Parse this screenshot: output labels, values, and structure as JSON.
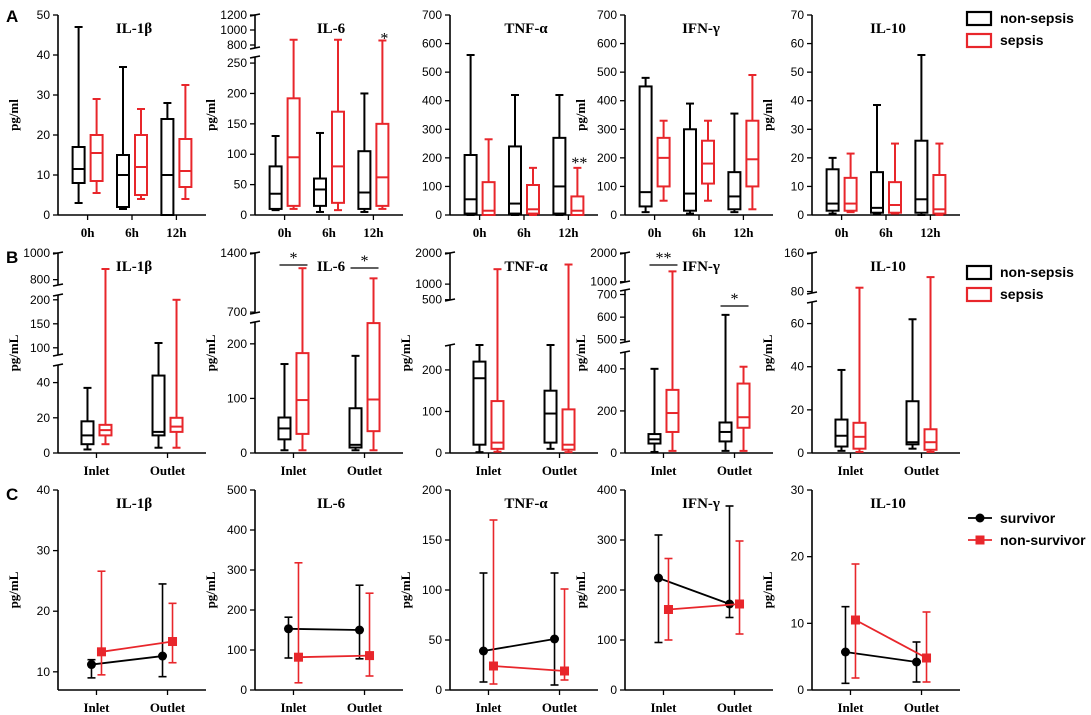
{
  "colors": {
    "nonsepsis": "#000000",
    "sepsis": "#e8262b",
    "survivor": "#000000",
    "nonsurvivor": "#e8262b"
  },
  "chart_data": [
    {
      "panel": "A",
      "type": "box",
      "title": "IL-1β",
      "ylabel": "pg/ml",
      "categories": [
        "0h",
        "6h",
        "12h"
      ],
      "yticks": [
        0,
        10,
        20,
        30,
        40,
        50
      ],
      "ylim": [
        0,
        50
      ],
      "series": [
        {
          "name": "non-sepsis",
          "boxes": [
            [
              3,
              8,
              11.5,
              17,
              47
            ],
            [
              1.5,
              2,
              10,
              15,
              37
            ],
            [
              0,
              0,
              10,
              24,
              28
            ]
          ]
        },
        {
          "name": "sepsis",
          "boxes": [
            [
              5.5,
              8.5,
              15.5,
              20,
              29
            ],
            [
              4,
              5,
              12,
              20,
              26.5
            ],
            [
              4,
              7,
              11,
              19,
              32.5
            ]
          ]
        }
      ],
      "annotations": []
    },
    {
      "panel": "A",
      "type": "box",
      "title": "IL-6",
      "ylabel": "pg/ml",
      "categories": [
        "0h",
        "6h",
        "12h"
      ],
      "yticks": [
        0,
        50,
        100,
        150,
        200,
        250,
        800,
        1000,
        1200
      ],
      "ylim": [
        0,
        1200
      ],
      "axis_break": {
        "low": [
          0,
          260
        ],
        "high": [
          760,
          1200
        ]
      },
      "series": [
        {
          "name": "non-sepsis",
          "boxes": [
            [
              8,
              10,
              35,
              80,
              130
            ],
            [
              5,
              15,
              42,
              60,
              135
            ],
            [
              5,
              10,
              37,
              105,
              200
            ]
          ]
        },
        {
          "name": "sepsis",
          "boxes": [
            [
              10,
              15,
              95,
              192,
              870
            ],
            [
              8,
              20,
              80,
              170,
              870
            ],
            [
              10,
              15,
              62,
              150,
              860
            ]
          ]
        }
      ],
      "annotations": [
        {
          "text": "*",
          "category": "12h"
        }
      ]
    },
    {
      "panel": "A",
      "type": "box",
      "title": "TNF-α",
      "ylabel": "",
      "categories": [
        "0h",
        "6h",
        "12h"
      ],
      "yticks": [
        0,
        100,
        200,
        300,
        400,
        500,
        600,
        700
      ],
      "ylim": [
        0,
        700
      ],
      "series": [
        {
          "name": "non-sepsis",
          "boxes": [
            [
              0,
              5,
              55,
              210,
              560
            ],
            [
              0,
              5,
              40,
              240,
              420
            ],
            [
              0,
              5,
              100,
              270,
              420
            ]
          ]
        },
        {
          "name": "sepsis",
          "boxes": [
            [
              0,
              0,
              15,
              115,
              265
            ],
            [
              0,
              5,
              20,
              105,
              165
            ],
            [
              0,
              0,
              15,
              65,
              165
            ]
          ]
        }
      ],
      "annotations": [
        {
          "text": "**",
          "category": "12h"
        }
      ]
    },
    {
      "panel": "A",
      "type": "box",
      "title": "IFN-γ",
      "ylabel": "pg/ml",
      "categories": [
        "0h",
        "6h",
        "12h"
      ],
      "yticks": [
        0,
        100,
        200,
        300,
        400,
        500,
        600,
        700
      ],
      "ylim": [
        0,
        700
      ],
      "series": [
        {
          "name": "non-sepsis",
          "boxes": [
            [
              10,
              30,
              80,
              450,
              480
            ],
            [
              5,
              15,
              75,
              300,
              390
            ],
            [
              10,
              20,
              65,
              150,
              355
            ]
          ]
        },
        {
          "name": "sepsis",
          "boxes": [
            [
              50,
              100,
              200,
              270,
              330
            ],
            [
              50,
              110,
              180,
              260,
              330
            ],
            [
              20,
              100,
              195,
              330,
              490
            ]
          ]
        }
      ],
      "annotations": []
    },
    {
      "panel": "A",
      "type": "box",
      "title": "IL-10",
      "ylabel": "pg/ml",
      "categories": [
        "0h",
        "6h",
        "12h"
      ],
      "yticks": [
        0,
        10,
        20,
        30,
        40,
        50,
        60,
        70
      ],
      "ylim": [
        0,
        70
      ],
      "series": [
        {
          "name": "non-sepsis",
          "boxes": [
            [
              0.5,
              1.5,
              4,
              16,
              20
            ],
            [
              0.5,
              0.8,
              2.5,
              15,
              38.5
            ],
            [
              0,
              0.8,
              5.5,
              26,
              56
            ]
          ]
        },
        {
          "name": "sepsis",
          "boxes": [
            [
              1,
              1.5,
              4,
              13,
              21.5
            ],
            [
              0.5,
              0.8,
              3.5,
              11.5,
              25
            ],
            [
              0,
              0.5,
              2,
              14,
              25
            ]
          ]
        }
      ],
      "annotations": []
    },
    {
      "panel": "B",
      "type": "box",
      "title": "IL-1β",
      "ylabel": "pg/mL",
      "categories": [
        "Inlet",
        "Outlet"
      ],
      "yticks": [
        0,
        20,
        40,
        100,
        150,
        200,
        800,
        1000
      ],
      "ylim": [
        0,
        1000
      ],
      "axis_break": {
        "low": [
          0,
          50
        ],
        "mid": [
          85,
          210
        ],
        "high": [
          760,
          1000
        ]
      },
      "series": [
        {
          "name": "non-sepsis",
          "boxes": [
            [
              2,
              5,
              10,
              18,
              37
            ],
            [
              3,
              10,
              12,
              44,
              110
            ]
          ]
        },
        {
          "name": "sepsis",
          "boxes": [
            [
              5,
              10,
              13,
              16,
              880
            ],
            [
              3,
              12,
              15,
              20,
              200
            ]
          ]
        }
      ],
      "annotations": []
    },
    {
      "panel": "B",
      "type": "box",
      "title": "IL-6",
      "ylabel": "pg/mL",
      "categories": [
        "Inlet",
        "Outlet"
      ],
      "yticks": [
        0,
        100,
        200,
        700,
        1400
      ],
      "ylim": [
        0,
        1400
      ],
      "axis_break": {
        "low": [
          0,
          240
        ],
        "high": [
          690,
          1400
        ]
      },
      "series": [
        {
          "name": "non-sepsis",
          "boxes": [
            [
              5,
              25,
              45,
              65,
              163
            ],
            [
              5,
              10,
              15,
              82,
              178
            ]
          ]
        },
        {
          "name": "sepsis",
          "boxes": [
            [
              5,
              35,
              97,
              183,
              1220
            ],
            [
              5,
              40,
              98,
              238,
              1100
            ]
          ]
        }
      ],
      "annotations": [
        {
          "text": "*",
          "category": "Inlet"
        },
        {
          "text": "*",
          "category": "Outlet"
        }
      ]
    },
    {
      "panel": "B",
      "type": "box",
      "title": "TNF-α",
      "ylabel": "pg/mL",
      "categories": [
        "Inlet",
        "Outlet"
      ],
      "yticks": [
        0,
        100,
        200,
        500,
        1000,
        2000
      ],
      "ylim": [
        0,
        2000
      ],
      "axis_break": {
        "low": [
          0,
          260
        ],
        "high": [
          490,
          2000
        ]
      },
      "series": [
        {
          "name": "non-sepsis",
          "boxes": [
            [
              2,
              20,
              180,
              220,
              420
            ],
            [
              10,
              25,
              95,
              150,
              280
            ]
          ]
        },
        {
          "name": "sepsis",
          "boxes": [
            [
              3,
              10,
              25,
              125,
              1480
            ],
            [
              2,
              8,
              20,
              105,
              1630
            ]
          ]
        }
      ],
      "annotations": []
    },
    {
      "panel": "B",
      "type": "box",
      "title": "IFN-γ",
      "ylabel": "pg/mL",
      "categories": [
        "Inlet",
        "Outlet"
      ],
      "yticks": [
        0,
        200,
        400,
        500,
        600,
        700,
        1000,
        2000
      ],
      "ylim": [
        0,
        2000
      ],
      "axis_break": {
        "low": [
          0,
          480
        ],
        "mid": [
          490,
          720
        ],
        "high": [
          990,
          2000
        ]
      },
      "series": [
        {
          "name": "non-sepsis",
          "boxes": [
            [
              5,
              45,
              65,
              90,
              400
            ],
            [
              10,
              55,
              100,
              145,
              610
            ]
          ]
        },
        {
          "name": "sepsis",
          "boxes": [
            [
              10,
              100,
              190,
              300,
              1360
            ],
            [
              10,
              120,
              170,
              330,
              410
            ]
          ]
        }
      ],
      "annotations": [
        {
          "text": "**",
          "category": "Inlet"
        },
        {
          "text": "*",
          "category": "Outlet"
        }
      ]
    },
    {
      "panel": "B",
      "type": "box",
      "title": "IL-10",
      "ylabel": "pg/mL",
      "categories": [
        "Inlet",
        "Outlet"
      ],
      "yticks": [
        0,
        20,
        40,
        60,
        80,
        160
      ],
      "ylim": [
        0,
        160
      ],
      "axis_break": {
        "low": [
          0,
          70
        ],
        "high": [
          77,
          160
        ]
      },
      "series": [
        {
          "name": "non-sepsis",
          "boxes": [
            [
              1,
              3,
              8,
              15.5,
              38.5
            ],
            [
              2,
              4,
              5,
              24,
              62
            ]
          ]
        },
        {
          "name": "sepsis",
          "boxes": [
            [
              0.5,
              2,
              7.5,
              14,
              88
            ],
            [
              0.5,
              1.5,
              5,
              11,
              110
            ]
          ]
        }
      ],
      "annotations": []
    },
    {
      "panel": "C",
      "type": "line",
      "title": "IL-1β",
      "ylabel": "pg/mL",
      "categories": [
        "Inlet",
        "Outlet"
      ],
      "yticks": [
        10,
        20,
        30,
        40
      ],
      "ylim": [
        7,
        40
      ],
      "series": [
        {
          "name": "survivor",
          "values": [
            11.2,
            12.6
          ],
          "lower": [
            9,
            9.2
          ],
          "upper": [
            12,
            24.5
          ]
        },
        {
          "name": "non-survivor",
          "values": [
            13.3,
            15
          ],
          "lower": [
            9.5,
            11.5
          ],
          "upper": [
            26.6,
            21.3
          ]
        }
      ]
    },
    {
      "panel": "C",
      "type": "line",
      "title": "IL-6",
      "ylabel": "pg/mL",
      "categories": [
        "Inlet",
        "Outlet"
      ],
      "yticks": [
        0,
        100,
        200,
        300,
        400,
        500
      ],
      "ylim": [
        0,
        500
      ],
      "series": [
        {
          "name": "survivor",
          "values": [
            153,
            150
          ],
          "lower": [
            80,
            78
          ],
          "upper": [
            182,
            262
          ]
        },
        {
          "name": "non-survivor",
          "values": [
            82,
            86
          ],
          "lower": [
            18,
            35
          ],
          "upper": [
            318,
            242
          ]
        }
      ]
    },
    {
      "panel": "C",
      "type": "line",
      "title": "TNF-α",
      "ylabel": "pg/mL",
      "categories": [
        "Inlet",
        "Outlet"
      ],
      "yticks": [
        0,
        50,
        100,
        150,
        200
      ],
      "ylim": [
        0,
        200
      ],
      "series": [
        {
          "name": "survivor",
          "values": [
            39,
            51
          ],
          "lower": [
            8,
            5
          ],
          "upper": [
            117,
            117
          ]
        },
        {
          "name": "non-survivor",
          "values": [
            24,
            19
          ],
          "lower": [
            6,
            10
          ],
          "upper": [
            170,
            101
          ]
        }
      ]
    },
    {
      "panel": "C",
      "type": "line",
      "title": "IFN-γ",
      "ylabel": "pg/mL",
      "categories": [
        "Inlet",
        "Outlet"
      ],
      "yticks": [
        0,
        100,
        200,
        300,
        400
      ],
      "ylim": [
        0,
        400
      ],
      "series": [
        {
          "name": "survivor",
          "values": [
            224,
            172
          ],
          "lower": [
            95,
            145
          ],
          "upper": [
            310,
            368
          ]
        },
        {
          "name": "non-survivor",
          "values": [
            161,
            172
          ],
          "lower": [
            100,
            112
          ],
          "upper": [
            263,
            298
          ]
        }
      ]
    },
    {
      "panel": "C",
      "type": "line",
      "title": "IL-10",
      "ylabel": "pg/mL",
      "categories": [
        "Inlet",
        "Outlet"
      ],
      "yticks": [
        0,
        10,
        20,
        30
      ],
      "ylim": [
        0,
        30
      ],
      "series": [
        {
          "name": "survivor",
          "values": [
            5.7,
            4.2
          ],
          "lower": [
            1,
            1.2
          ],
          "upper": [
            12.5,
            7.2
          ]
        },
        {
          "name": "non-survivor",
          "values": [
            10.5,
            4.8
          ],
          "lower": [
            1.8,
            1.2
          ],
          "upper": [
            18.9,
            11.7
          ]
        }
      ]
    }
  ],
  "legends": {
    "A": [
      "non-sepsis",
      "sepsis"
    ],
    "B": [
      "non-sepsis",
      "sepsis"
    ],
    "C": [
      "survivor",
      "non-survivor"
    ]
  },
  "panel_letters": [
    "A",
    "B",
    "C"
  ]
}
